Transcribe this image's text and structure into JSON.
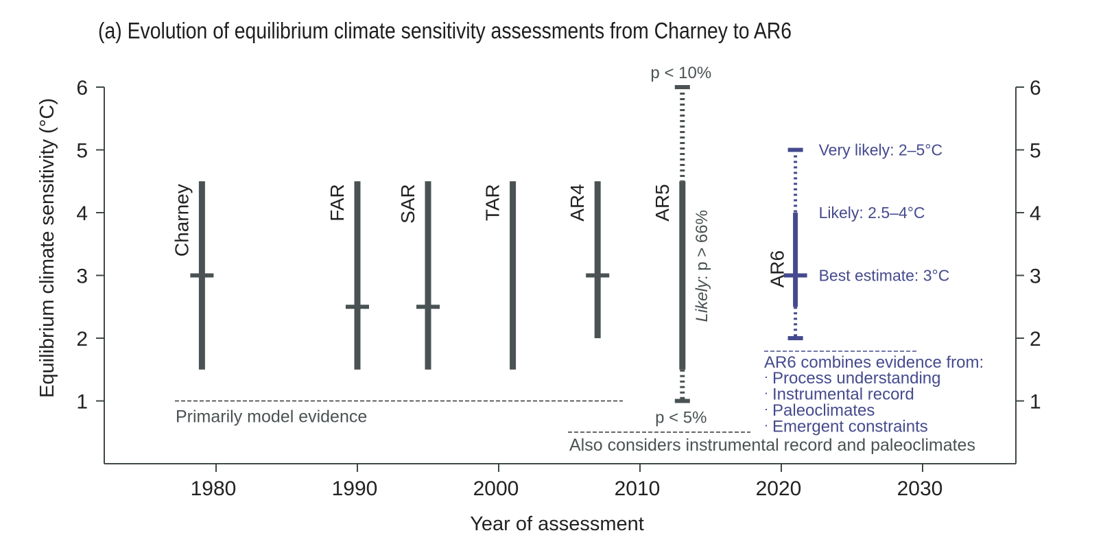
{
  "title": "(a) Evolution of equilibrium climate sensitivity assessments from Charney to AR6",
  "colors": {
    "gray": "#4a5253",
    "purple": "#454a8e",
    "axis": "#3f4747",
    "text": "#222222"
  },
  "chart_data": {
    "type": "range",
    "xlabel": "Year of assessment",
    "ylabel": "Equilibrium climate sensitivity (°C)",
    "xlim": [
      1972,
      2037
    ],
    "ylim": [
      0,
      6
    ],
    "x_ticks": [
      1980,
      1990,
      2000,
      2010,
      2020,
      2030
    ],
    "y_ticks": [
      1,
      2,
      3,
      4,
      5,
      6
    ],
    "grid": false,
    "assessments": [
      {
        "name": "Charney",
        "year": 1979,
        "low": 1.5,
        "high": 4.5,
        "best": 3.0
      },
      {
        "name": "FAR",
        "year": 1990,
        "low": 1.5,
        "high": 4.5,
        "best": 2.5
      },
      {
        "name": "SAR",
        "year": 1995,
        "low": 1.5,
        "high": 4.5,
        "best": 2.5
      },
      {
        "name": "TAR",
        "year": 2001,
        "low": 1.5,
        "high": 4.5,
        "best": null
      },
      {
        "name": "AR4",
        "year": 2007,
        "low": 2.0,
        "high": 4.5,
        "best": 3.0
      },
      {
        "name": "AR5",
        "year": 2013,
        "low": 1.5,
        "high": 4.5,
        "best": null,
        "outer_low": 1.0,
        "outer_high": 6.0
      },
      {
        "name": "AR6",
        "year": 2021,
        "low": 2.5,
        "high": 4.0,
        "best": 3.0,
        "outer_low": 2.0,
        "outer_high": 5.0
      }
    ],
    "annotations": {
      "ar5_top": "p < 10%",
      "ar5_bottom": "p < 5%",
      "ar5_likely_word": "Likely",
      "ar5_likely_rest": ": p > 66%",
      "ar6_very_likely": "Very likely:  2–5°C",
      "ar6_likely": "Likely:  2.5–4°C",
      "ar6_best": "Best estimate:  3°C",
      "model_evidence": "Primarily model evidence",
      "also_considers": "Also considers instrumental record and paleoclimates",
      "ar6_combines": "AR6 combines evidence from:",
      "ar6_sources": [
        "Process understanding",
        "Instrumental record",
        "Paleoclimates",
        "Emergent constraints"
      ]
    }
  }
}
